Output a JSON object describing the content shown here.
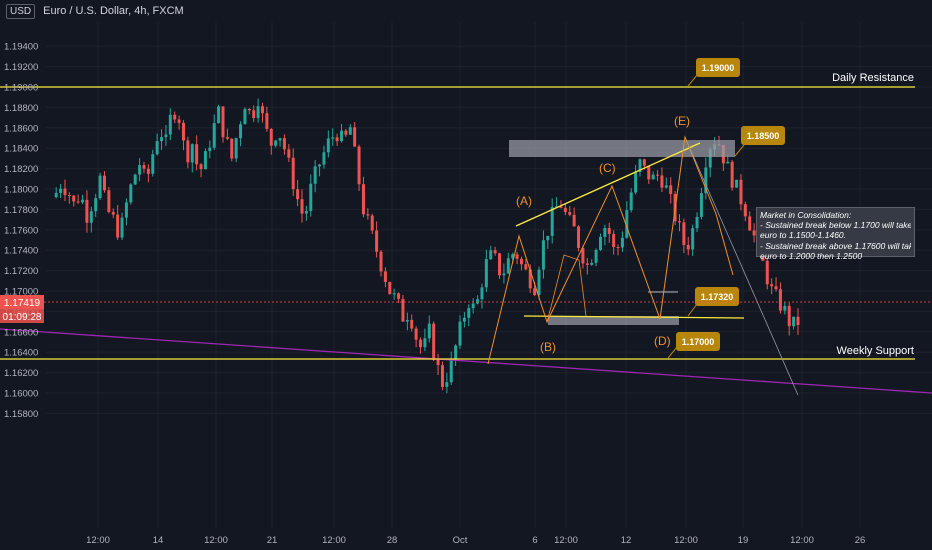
{
  "header": {
    "currency": "USD",
    "symbol_title": "Euro / U.S. Dollar, 4h, FXCM"
  },
  "price_axis": {
    "ticks": [
      "1.19400",
      "1.19200",
      "1.19000",
      "1.18800",
      "1.18600",
      "1.18400",
      "1.18200",
      "1.18000",
      "1.17800",
      "1.17600",
      "1.17400",
      "1.17200",
      "1.17000",
      "1.16800",
      "1.16600",
      "1.16400",
      "1.16200",
      "1.16000",
      "1.15800"
    ],
    "current_price": "1.17419",
    "countdown": "01:09:28"
  },
  "time_axis": {
    "ticks": [
      "12:00",
      "14",
      "12:00",
      "21",
      "12:00",
      "28",
      "Oct",
      "6",
      "12:00",
      "12",
      "12:00",
      "19",
      "12:00",
      "26"
    ]
  },
  "annotations": {
    "daily_resistance": "Daily Resistance",
    "weekly_support": "Weekly Support",
    "wave_labels": [
      "(A)",
      "(B)",
      "(C)",
      "(D)",
      "(E)"
    ],
    "price_tags": [
      "1.19000",
      "1.18500",
      "1.17320",
      "1.17000"
    ],
    "note_lines": [
      "Market in Consolidation:",
      "- Sustained break below 1.1700 will take",
      "euro to 1.1500-1.1460.",
      "- Sustained break above 1.17600 will take",
      "euro to 1.2000 then 1.2500"
    ]
  },
  "colors": {
    "up": "#26a69a",
    "down": "#ef5350",
    "level": "#ffeb3b",
    "trend": "#9c27b0",
    "wave": "#f28e2b",
    "tag": "#b8860b"
  },
  "chart_data": {
    "type": "candlestick",
    "title": "Euro / U.S. Dollar, 4h, FXCM",
    "ylim": [
      1.158,
      1.195
    ],
    "path": [
      [
        0,
        1.1792
      ],
      [
        3,
        1.1805
      ],
      [
        6,
        1.18
      ],
      [
        9,
        1.1785
      ],
      [
        12,
        1.1795
      ],
      [
        15,
        1.1775
      ],
      [
        18,
        1.179
      ],
      [
        21,
        1.181
      ],
      [
        24,
        1.178
      ],
      [
        27,
        1.177
      ],
      [
        30,
        1.1755
      ],
      [
        33,
        1.1785
      ],
      [
        36,
        1.181
      ],
      [
        39,
        1.1825
      ],
      [
        42,
        1.1805
      ],
      [
        45,
        1.1835
      ],
      [
        48,
        1.186
      ],
      [
        51,
        1.1845
      ],
      [
        54,
        1.188
      ],
      [
        57,
        1.187
      ],
      [
        60,
        1.183
      ],
      [
        63,
        1.1845
      ],
      [
        66,
        1.1815
      ],
      [
        69,
        1.183
      ],
      [
        72,
        1.1855
      ],
      [
        75,
        1.1875
      ],
      [
        78,
        1.185
      ],
      [
        81,
        1.183
      ],
      [
        84,
        1.186
      ],
      [
        87,
        1.1885
      ],
      [
        90,
        1.187
      ],
      [
        93,
        1.189
      ],
      [
        96,
        1.186
      ],
      [
        99,
        1.1845
      ],
      [
        102,
        1.186
      ],
      [
        105,
        1.184
      ],
      [
        108,
        1.1815
      ],
      [
        111,
        1.179
      ],
      [
        114,
        1.177
      ],
      [
        117,
        1.18
      ],
      [
        120,
        1.182
      ],
      [
        123,
        1.1835
      ],
      [
        126,
        1.185
      ],
      [
        129,
        1.1855
      ],
      [
        132,
        1.1845
      ],
      [
        135,
        1.186
      ],
      [
        138,
        1.182
      ],
      [
        141,
        1.178
      ],
      [
        144,
        1.176
      ],
      [
        147,
        1.174
      ],
      [
        150,
        1.172
      ],
      [
        153,
        1.17
      ],
      [
        156,
        1.169
      ],
      [
        159,
        1.1675
      ],
      [
        162,
        1.168
      ],
      [
        165,
        1.1655
      ],
      [
        168,
        1.164
      ],
      [
        171,
        1.166
      ],
      [
        174,
        1.163
      ],
      [
        177,
        1.161
      ],
      [
        180,
        1.162
      ],
      [
        183,
        1.1645
      ],
      [
        186,
        1.167
      ],
      [
        189,
        1.169
      ],
      [
        192,
        1.168
      ],
      [
        195,
        1.171
      ],
      [
        198,
        1.1735
      ],
      [
        201,
        1.173
      ],
      [
        204,
        1.1715
      ],
      [
        207,
        1.173
      ],
      [
        210,
        1.174
      ],
      [
        213,
        1.1725
      ],
      [
        216,
        1.1715
      ],
      [
        219,
        1.1705
      ],
      [
        222,
        1.174
      ],
      [
        225,
        1.176
      ],
      [
        228,
        1.178
      ],
      [
        231,
        1.1785
      ],
      [
        234,
        1.177
      ],
      [
        237,
        1.176
      ],
      [
        240,
        1.174
      ],
      [
        243,
        1.1725
      ],
      [
        246,
        1.174
      ],
      [
        249,
        1.176
      ],
      [
        252,
        1.1765
      ],
      [
        255,
        1.174
      ],
      [
        258,
        1.1745
      ],
      [
        261,
        1.178
      ],
      [
        264,
        1.1805
      ],
      [
        267,
        1.1825
      ],
      [
        270,
        1.1815
      ],
      [
        273,
        1.181
      ],
      [
        276,
        1.1815
      ],
      [
        279,
        1.18
      ],
      [
        282,
        1.178
      ],
      [
        285,
        1.176
      ],
      [
        288,
        1.174
      ],
      [
        291,
        1.176
      ],
      [
        294,
        1.179
      ],
      [
        297,
        1.183
      ],
      [
        300,
        1.185
      ],
      [
        303,
        1.1845
      ],
      [
        306,
        1.1825
      ],
      [
        309,
        1.181
      ],
      [
        312,
        1.1795
      ],
      [
        315,
        1.178
      ],
      [
        318,
        1.176
      ],
      [
        321,
        1.174
      ],
      [
        324,
        1.172
      ],
      [
        327,
        1.17
      ],
      [
        330,
        1.169
      ],
      [
        333,
        1.168
      ],
      [
        336,
        1.1665
      ],
      [
        339,
        1.167
      ]
    ],
    "levels": [
      {
        "name": "Daily Resistance",
        "y": 1.19
      },
      {
        "name": "Weekly Support",
        "y": 1.17
      }
    ],
    "rectangles": [
      {
        "y_top": 1.1865,
        "y_bottom": 1.1852
      },
      {
        "y_top": 1.1734,
        "y_bottom": 1.1727
      }
    ]
  }
}
